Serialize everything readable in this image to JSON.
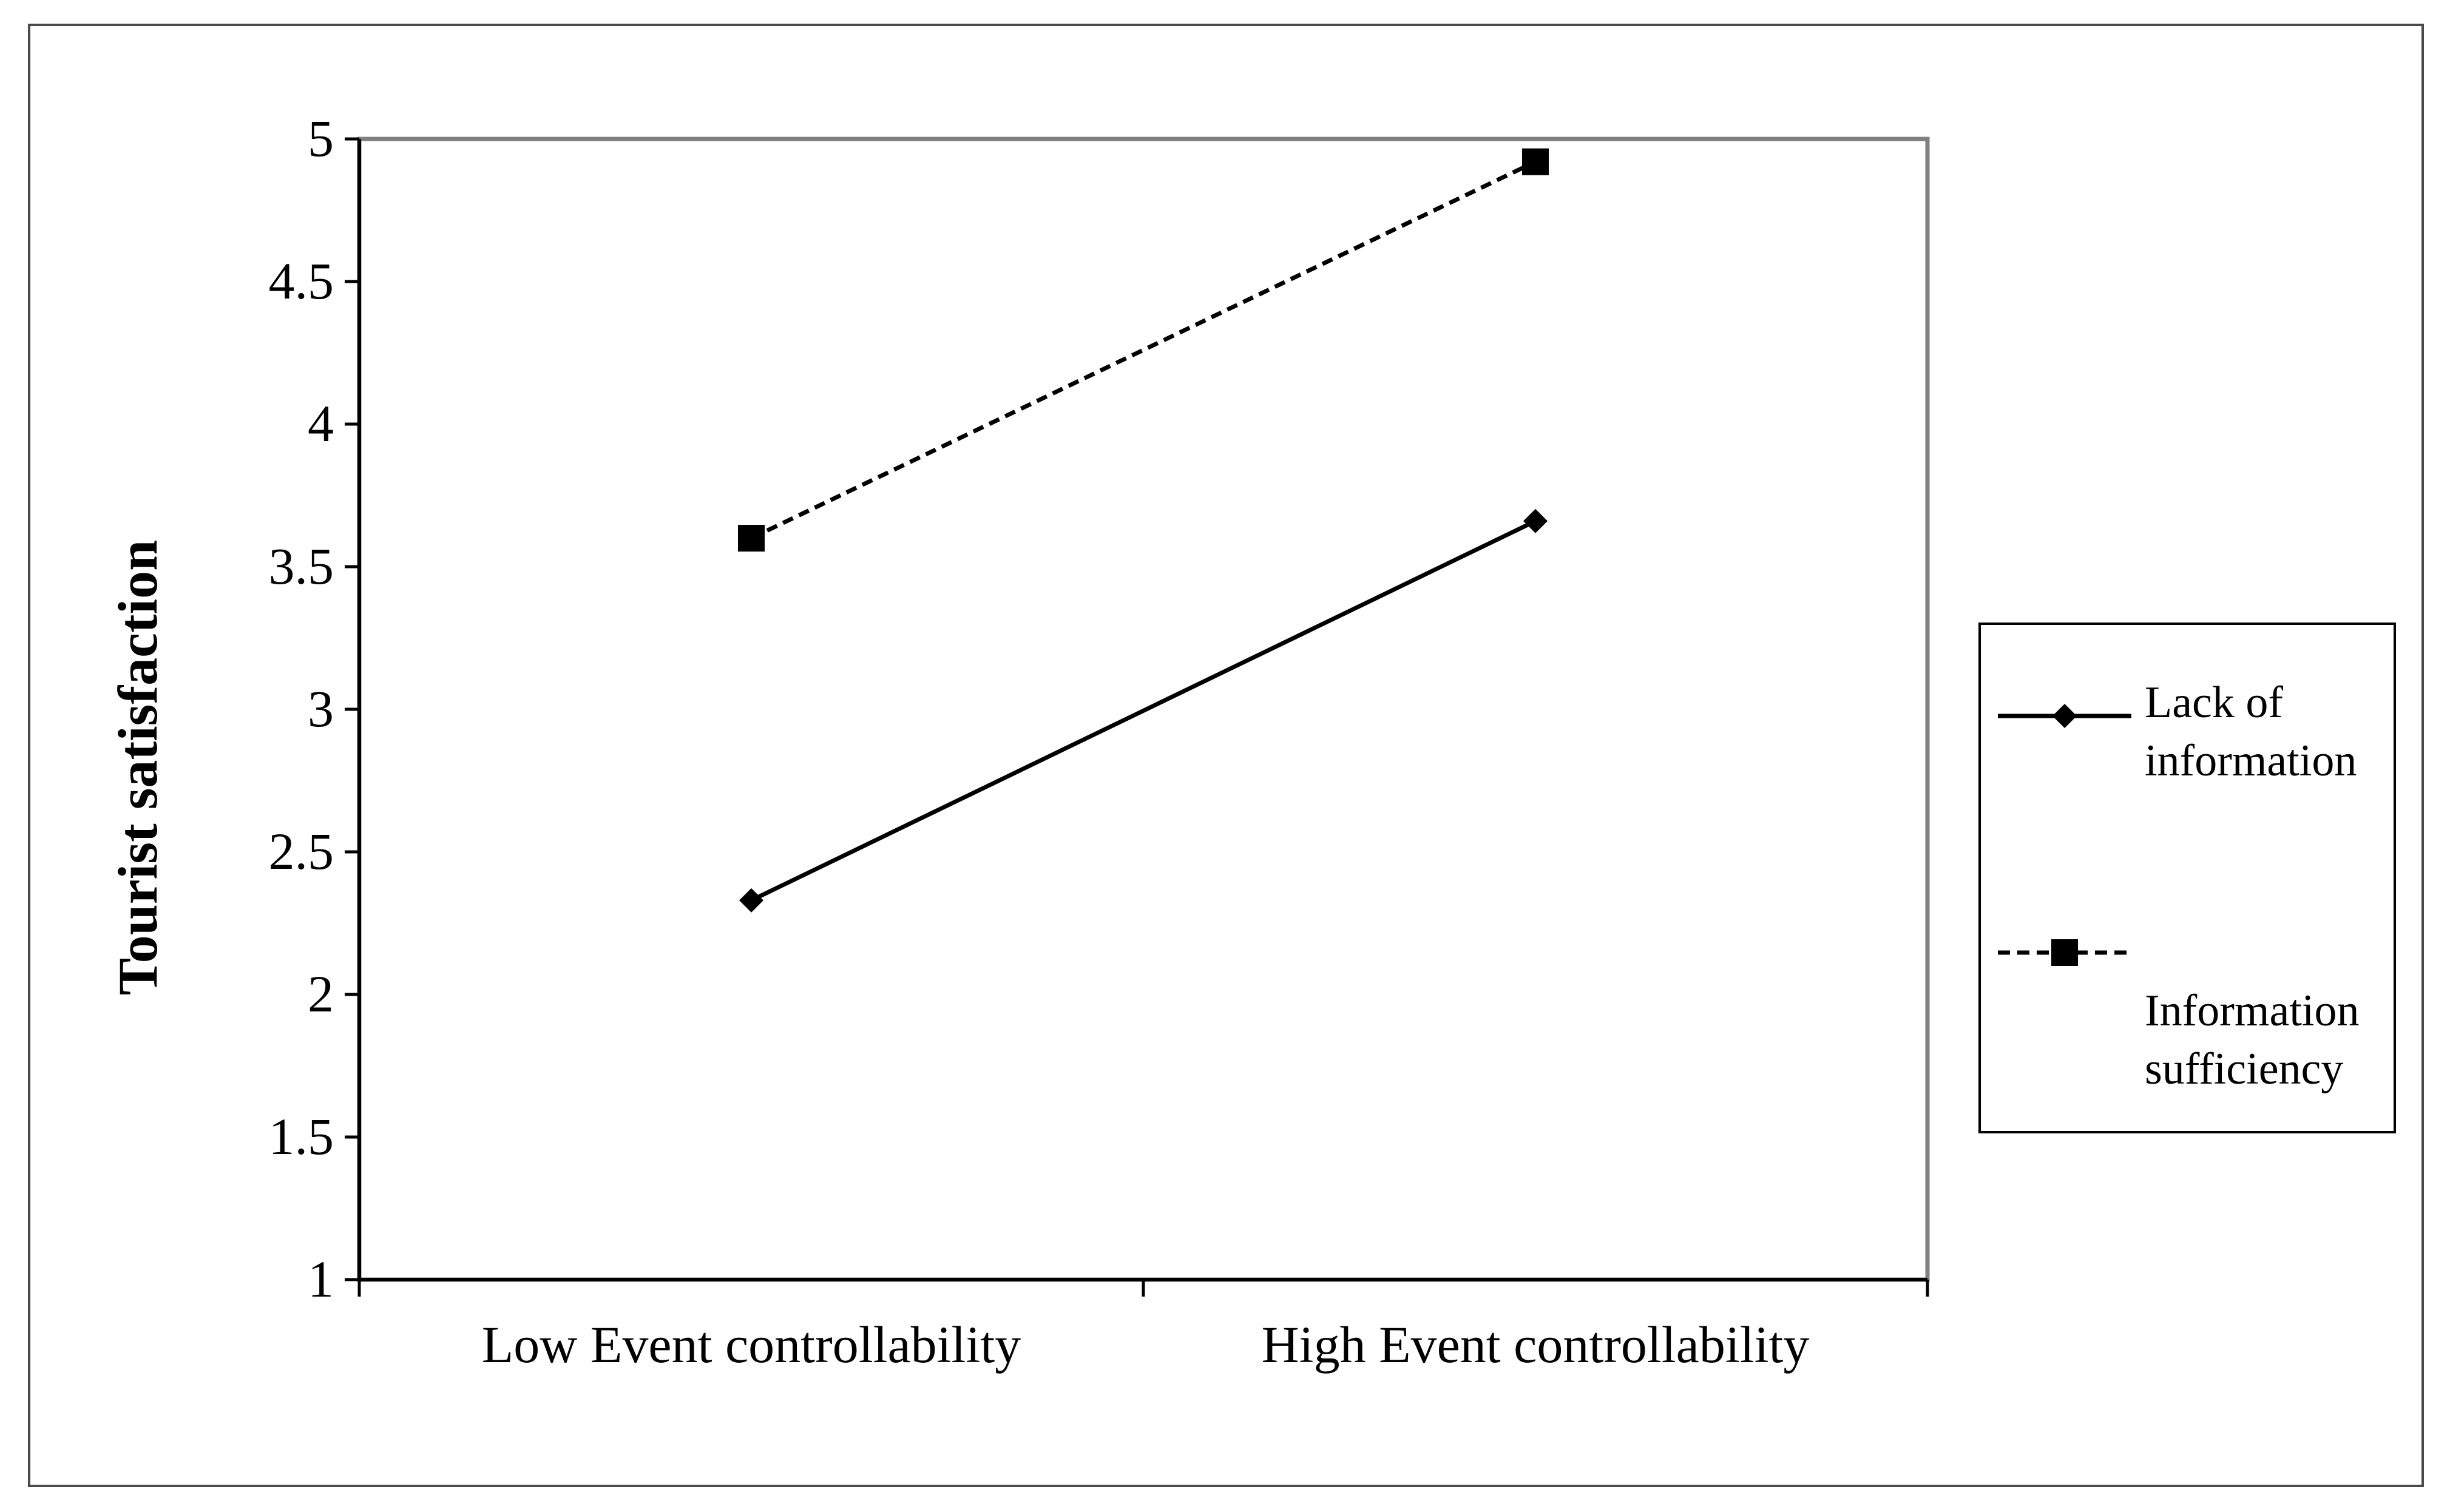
{
  "chart_data": {
    "type": "line",
    "title": "",
    "xlabel": "",
    "ylabel": "Tourist satisfaction",
    "categories": [
      "Low Event controllability",
      "High Event controllability"
    ],
    "ylim": [
      1,
      5
    ],
    "yticks": [
      "1",
      "1.5",
      "2",
      "2.5",
      "3",
      "3.5",
      "4",
      "4.5",
      "5"
    ],
    "grid": false,
    "legend_position": "right",
    "series": [
      {
        "name": "Lack of information",
        "values": [
          2.33,
          3.66
        ],
        "line_style": "solid",
        "marker": "diamond",
        "color": "#000000"
      },
      {
        "name": "Information sufficiency",
        "values": [
          3.6,
          4.92
        ],
        "line_style": "dashed",
        "marker": "square",
        "color": "#000000"
      }
    ]
  },
  "legend": {
    "items": [
      {
        "label_line1": "Lack of",
        "label_line2": "information"
      },
      {
        "label_line1": "Information",
        "label_line2": "sufficiency"
      }
    ]
  }
}
